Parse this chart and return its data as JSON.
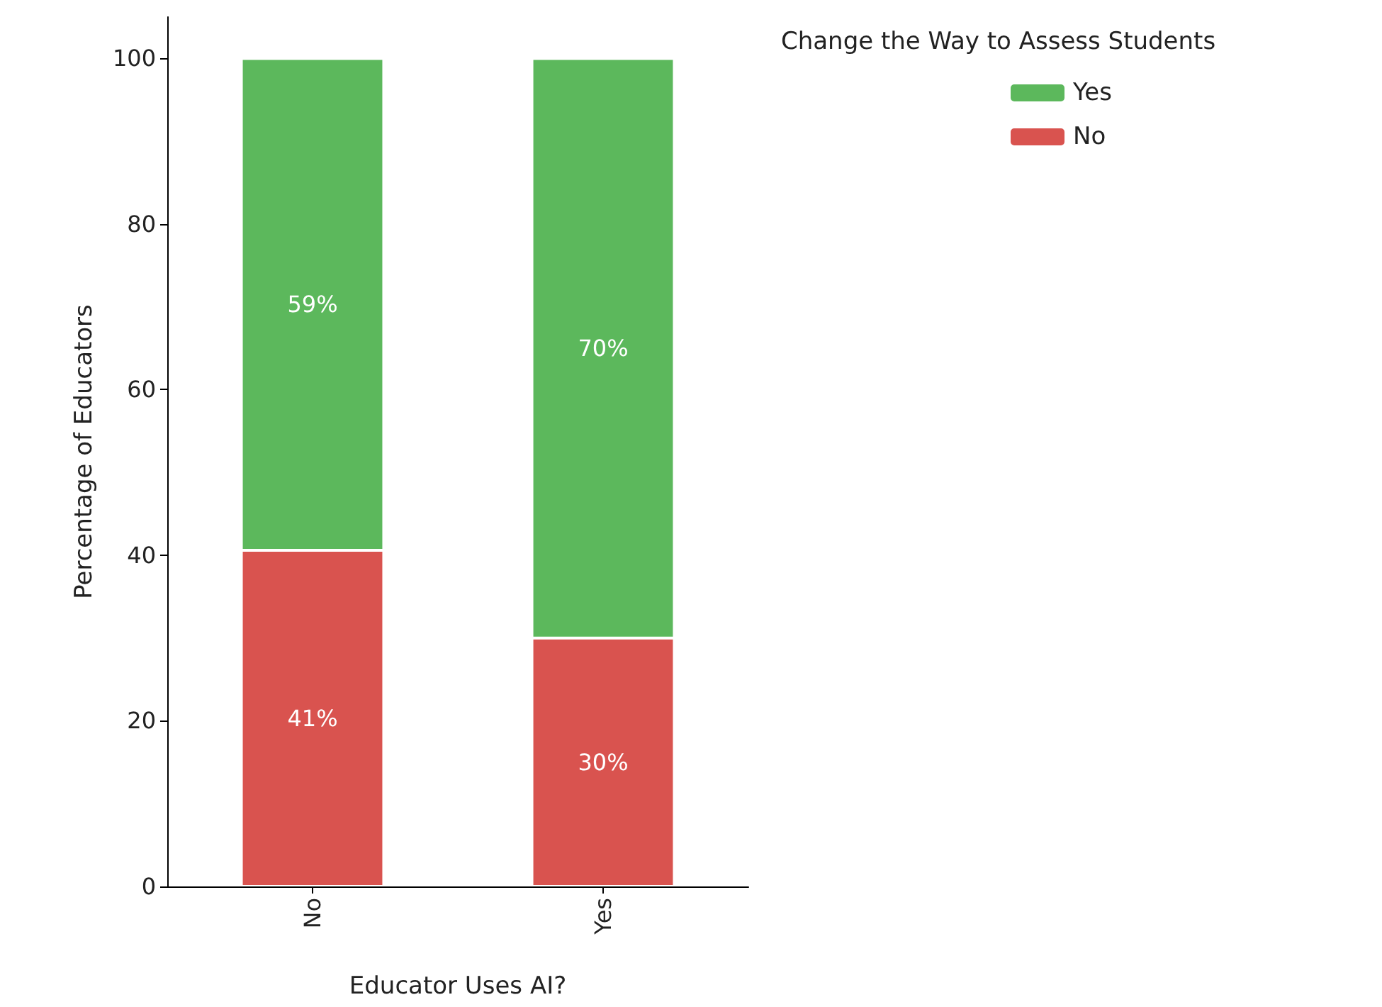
{
  "chart_data": {
    "type": "bar",
    "stacked": true,
    "xlabel": "Educator Uses AI?",
    "ylabel": "Percentage of Educators",
    "legend_title": "Change the Way to Assess Students",
    "legend": "top right",
    "grid": false,
    "categories": [
      "No",
      "Yes"
    ],
    "ylim": [
      0,
      105
    ],
    "yticks": [
      0,
      20,
      40,
      60,
      80,
      100
    ],
    "series": [
      {
        "name": "No",
        "color": "#d9534f",
        "values": [
          40.6,
          30
        ],
        "value_labels": [
          "41%",
          "30%"
        ]
      },
      {
        "name": "Yes",
        "color": "#5cb85c",
        "values": [
          59.4,
          70
        ],
        "value_labels": [
          "59%",
          "70%"
        ]
      }
    ]
  }
}
